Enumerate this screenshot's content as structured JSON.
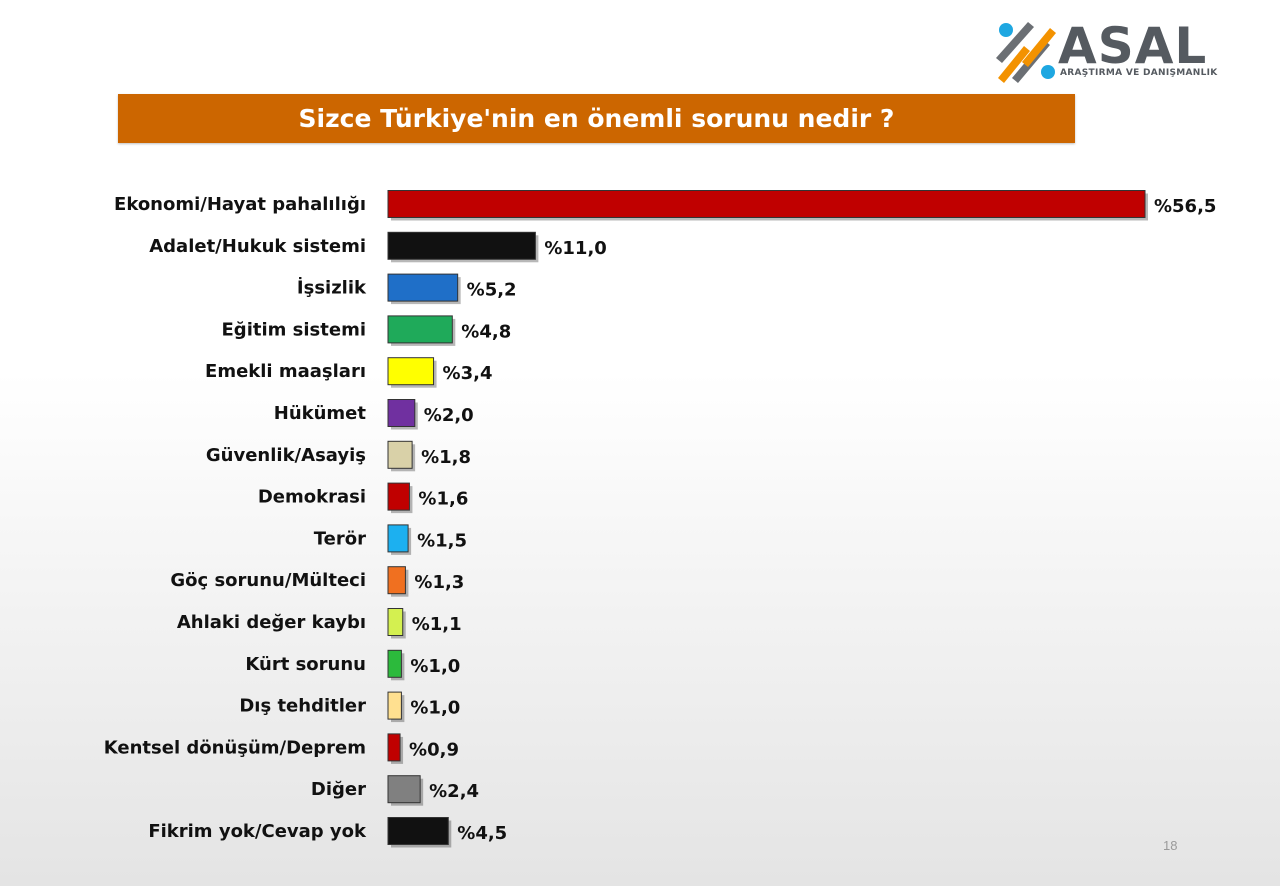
{
  "logo": {
    "name": "ASAL",
    "subtitle": "ARAŞTIRMA VE DANIŞMANLIK"
  },
  "page_number": "18",
  "chart_data": {
    "type": "bar",
    "orientation": "horizontal",
    "title": "Sizce Türkiye'nin en önemli sorunu nedir ?",
    "xlabel": "",
    "ylabel": "",
    "grid": false,
    "legend": "none",
    "xlim": [
      0,
      56.5
    ],
    "categories": [
      "Ekonomi/Hayat pahalılığı",
      "Adalet/Hukuk sistemi",
      "İşsizlik",
      "Eğitim sistemi",
      "Emekli maaşları",
      "Hükümet",
      "Güvenlik/Asayiş",
      "Demokrasi",
      "Terör",
      "Göç sorunu/Mülteci",
      "Ahlaki değer kaybı",
      "Kürt sorunu",
      "Dış tehditler",
      "Kentsel dönüşüm/Deprem",
      "Diğer",
      "Fikrim yok/Cevap yok"
    ],
    "values": [
      56.5,
      11.0,
      5.2,
      4.8,
      3.4,
      2.0,
      1.8,
      1.6,
      1.5,
      1.3,
      1.1,
      1.0,
      1.0,
      0.9,
      2.4,
      4.5
    ],
    "value_labels": [
      "%56,5",
      "%11,0",
      "%5,2",
      "%4,8",
      "%3,4",
      "%2,0",
      "%1,8",
      "%1,6",
      "%1,5",
      "%1,3",
      "%1,1",
      "%1,0",
      "%1,0",
      "%0,9",
      "%2,4",
      "%4,5"
    ],
    "colors": [
      "#c00000",
      "#111111",
      "#1f6fc8",
      "#1faa5a",
      "#ffff00",
      "#7030a0",
      "#d9d1a8",
      "#c00000",
      "#1cb0f0",
      "#f07020",
      "#d4f050",
      "#2cba3c",
      "#ffe090",
      "#c00000",
      "#808080",
      "#111111"
    ]
  }
}
